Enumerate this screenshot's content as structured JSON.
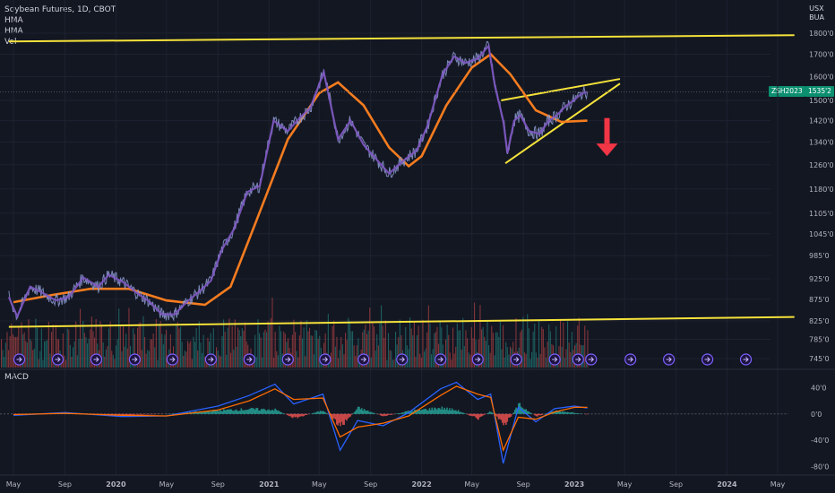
{
  "legend": {
    "title": "Soybean Futures, 1D, CBOT",
    "line2": "HMA",
    "line3": "HMA",
    "line4": "Vol"
  },
  "currency": {
    "top": "USX",
    "bottom": "BUA"
  },
  "badges": {
    "symbol": "ZSH2023",
    "price": "1535'2"
  },
  "macd_label": "MACD",
  "colors": {
    "background": "#131722",
    "price": "#8d9bd1",
    "hma_fast": "#7e57c2",
    "hma_slow": "#f57c1f",
    "trend_lines": "#f5e23a",
    "arrow": "#f23645",
    "vol_up": "#26a69a",
    "vol_down": "#ef5350",
    "macd": "#2962ff",
    "signal": "#ff6d00"
  },
  "chart_data": {
    "type": "line",
    "title": "Soybean Futures, 1D, CBOT",
    "y_tick_labels": [
      "1800'0",
      "1700'0",
      "1600'0",
      "1500'0",
      "1420'0",
      "1340'0",
      "1260'0",
      "1180'0",
      "1105'0",
      "1045'0",
      "985'0",
      "925'0",
      "875'0",
      "825'0",
      "785'0",
      "745'0"
    ],
    "y_tick_values": [
      1800,
      1700,
      1600,
      1500,
      1420,
      1340,
      1260,
      1180,
      1105,
      1045,
      985,
      925,
      875,
      825,
      785,
      745
    ],
    "x_tick_labels": [
      "May",
      "Sep",
      "2020",
      "May",
      "Sep",
      "2021",
      "May",
      "Sep",
      "2022",
      "May",
      "Sep",
      "2023",
      "May",
      "Sep",
      "2024",
      "May"
    ],
    "x_tick_dates": [
      "2019-05",
      "2019-09",
      "2020-01",
      "2020-05",
      "2020-09",
      "2021-01",
      "2021-05",
      "2021-09",
      "2022-01",
      "2022-05",
      "2022-09",
      "2023-01",
      "2023-05",
      "2023-09",
      "2024-01",
      "2024-05"
    ],
    "price_ylim": [
      745,
      1800
    ],
    "scale": "log",
    "last_price": "1535'2",
    "price_series": [
      {
        "date": "2019-04-20",
        "value": 880
      },
      {
        "date": "2019-05-10",
        "value": 835
      },
      {
        "date": "2019-06-10",
        "value": 905
      },
      {
        "date": "2019-07-10",
        "value": 890
      },
      {
        "date": "2019-08-10",
        "value": 872
      },
      {
        "date": "2019-09-10",
        "value": 880
      },
      {
        "date": "2019-10-15",
        "value": 928
      },
      {
        "date": "2019-11-20",
        "value": 905
      },
      {
        "date": "2019-12-15",
        "value": 935
      },
      {
        "date": "2020-01-20",
        "value": 915
      },
      {
        "date": "2020-02-20",
        "value": 890
      },
      {
        "date": "2020-03-20",
        "value": 870
      },
      {
        "date": "2020-04-20",
        "value": 840
      },
      {
        "date": "2020-05-20",
        "value": 840
      },
      {
        "date": "2020-06-20",
        "value": 870
      },
      {
        "date": "2020-07-20",
        "value": 895
      },
      {
        "date": "2020-08-15",
        "value": 920
      },
      {
        "date": "2020-09-10",
        "value": 1000
      },
      {
        "date": "2020-10-10",
        "value": 1060
      },
      {
        "date": "2020-11-10",
        "value": 1170
      },
      {
        "date": "2020-12-10",
        "value": 1190
      },
      {
        "date": "2021-01-12",
        "value": 1420
      },
      {
        "date": "2021-02-15",
        "value": 1380
      },
      {
        "date": "2021-03-15",
        "value": 1430
      },
      {
        "date": "2021-04-10",
        "value": 1470
      },
      {
        "date": "2021-05-12",
        "value": 1620
      },
      {
        "date": "2021-06-15",
        "value": 1350
      },
      {
        "date": "2021-07-15",
        "value": 1420
      },
      {
        "date": "2021-08-15",
        "value": 1330
      },
      {
        "date": "2021-09-20",
        "value": 1270
      },
      {
        "date": "2021-10-15",
        "value": 1230
      },
      {
        "date": "2021-11-15",
        "value": 1270
      },
      {
        "date": "2021-12-20",
        "value": 1310
      },
      {
        "date": "2022-01-15",
        "value": 1400
      },
      {
        "date": "2022-02-20",
        "value": 1610
      },
      {
        "date": "2022-03-20",
        "value": 1690
      },
      {
        "date": "2022-04-15",
        "value": 1660
      },
      {
        "date": "2022-05-15",
        "value": 1680
      },
      {
        "date": "2022-06-10",
        "value": 1740
      },
      {
        "date": "2022-06-25",
        "value": 1560
      },
      {
        "date": "2022-07-15",
        "value": 1420
      },
      {
        "date": "2022-07-25",
        "value": 1300
      },
      {
        "date": "2022-08-10",
        "value": 1420
      },
      {
        "date": "2022-08-25",
        "value": 1440
      },
      {
        "date": "2022-09-15",
        "value": 1380
      },
      {
        "date": "2022-10-10",
        "value": 1370
      },
      {
        "date": "2022-11-01",
        "value": 1420
      },
      {
        "date": "2022-11-20",
        "value": 1440
      },
      {
        "date": "2022-12-10",
        "value": 1475
      },
      {
        "date": "2022-12-30",
        "value": 1500
      },
      {
        "date": "2023-01-20",
        "value": 1530
      },
      {
        "date": "2023-02-01",
        "value": 1535.25
      }
    ],
    "hma_slow_series": [
      {
        "date": "2019-05-01",
        "value": 868
      },
      {
        "date": "2019-08-01",
        "value": 885
      },
      {
        "date": "2019-11-01",
        "value": 900
      },
      {
        "date": "2020-02-01",
        "value": 900
      },
      {
        "date": "2020-05-01",
        "value": 872
      },
      {
        "date": "2020-08-01",
        "value": 862
      },
      {
        "date": "2020-10-01",
        "value": 905
      },
      {
        "date": "2020-12-01",
        "value": 1080
      },
      {
        "date": "2021-02-15",
        "value": 1350
      },
      {
        "date": "2021-05-01",
        "value": 1530
      },
      {
        "date": "2021-06-15",
        "value": 1575
      },
      {
        "date": "2021-08-15",
        "value": 1480
      },
      {
        "date": "2021-10-15",
        "value": 1320
      },
      {
        "date": "2021-12-01",
        "value": 1255
      },
      {
        "date": "2022-01-01",
        "value": 1290
      },
      {
        "date": "2022-03-01",
        "value": 1480
      },
      {
        "date": "2022-05-01",
        "value": 1640
      },
      {
        "date": "2022-06-15",
        "value": 1700
      },
      {
        "date": "2022-08-01",
        "value": 1610
      },
      {
        "date": "2022-10-01",
        "value": 1460
      },
      {
        "date": "2022-12-01",
        "value": 1415
      },
      {
        "date": "2023-02-01",
        "value": 1420
      }
    ],
    "trend_lines": [
      {
        "name": "resistance-top",
        "from": {
          "date": "2019-04-20",
          "value": 1760
        },
        "to": {
          "date": "2024-06-10",
          "value": 1790
        }
      },
      {
        "name": "support-bottom",
        "from": {
          "date": "2019-04-20",
          "value": 812
        },
        "to": {
          "date": "2024-06-10",
          "value": 834
        }
      },
      {
        "name": "wedge-upper",
        "from": {
          "date": "2022-07-10",
          "value": 1500
        },
        "to": {
          "date": "2023-04-20",
          "value": 1590
        }
      },
      {
        "name": "wedge-lower",
        "from": {
          "date": "2022-07-20",
          "value": 1265
        },
        "to": {
          "date": "2023-04-20",
          "value": 1570
        }
      }
    ],
    "arrow": {
      "direction": "down",
      "date": "2023-03-20",
      "from": 1430,
      "to": 1290
    },
    "volume": {
      "ylim": [
        0,
        1
      ],
      "description": "daily volume bars in lower band"
    },
    "macd": {
      "tick_labels": [
        "40'0",
        "0'0",
        "-40'0",
        "-80'0"
      ],
      "tick_values": [
        40,
        0,
        -40,
        -80
      ],
      "ylim": [
        -90,
        50
      ],
      "macd_series": [
        {
          "date": "2019-05-01",
          "value": -2
        },
        {
          "date": "2019-09-01",
          "value": 2
        },
        {
          "date": "2020-01-15",
          "value": -4
        },
        {
          "date": "2020-05-01",
          "value": -3
        },
        {
          "date": "2020-09-01",
          "value": 12
        },
        {
          "date": "2020-11-15",
          "value": 28
        },
        {
          "date": "2021-01-15",
          "value": 45
        },
        {
          "date": "2021-03-01",
          "value": 15
        },
        {
          "date": "2021-05-10",
          "value": 30
        },
        {
          "date": "2021-06-20",
          "value": -55
        },
        {
          "date": "2021-08-01",
          "value": -10
        },
        {
          "date": "2021-10-01",
          "value": -18
        },
        {
          "date": "2021-12-01",
          "value": 2
        },
        {
          "date": "2022-02-15",
          "value": 38
        },
        {
          "date": "2022-03-25",
          "value": 48
        },
        {
          "date": "2022-05-15",
          "value": 22
        },
        {
          "date": "2022-06-15",
          "value": 30
        },
        {
          "date": "2022-07-15",
          "value": -75
        },
        {
          "date": "2022-08-20",
          "value": 10
        },
        {
          "date": "2022-10-01",
          "value": -12
        },
        {
          "date": "2022-11-15",
          "value": 8
        },
        {
          "date": "2023-01-01",
          "value": 12
        },
        {
          "date": "2023-02-01",
          "value": 9
        }
      ],
      "signal_series": [
        {
          "date": "2019-05-01",
          "value": -1
        },
        {
          "date": "2019-09-01",
          "value": 1
        },
        {
          "date": "2020-01-15",
          "value": -2
        },
        {
          "date": "2020-05-01",
          "value": -3
        },
        {
          "date": "2020-09-01",
          "value": 6
        },
        {
          "date": "2020-11-15",
          "value": 20
        },
        {
          "date": "2021-01-15",
          "value": 38
        },
        {
          "date": "2021-03-01",
          "value": 22
        },
        {
          "date": "2021-05-10",
          "value": 24
        },
        {
          "date": "2021-06-20",
          "value": -35
        },
        {
          "date": "2021-08-01",
          "value": -20
        },
        {
          "date": "2021-10-01",
          "value": -14
        },
        {
          "date": "2021-12-01",
          "value": -3
        },
        {
          "date": "2022-02-15",
          "value": 28
        },
        {
          "date": "2022-03-25",
          "value": 42
        },
        {
          "date": "2022-05-15",
          "value": 30
        },
        {
          "date": "2022-06-15",
          "value": 25
        },
        {
          "date": "2022-07-15",
          "value": -55
        },
        {
          "date": "2022-08-20",
          "value": -5
        },
        {
          "date": "2022-10-01",
          "value": -8
        },
        {
          "date": "2022-11-15",
          "value": 3
        },
        {
          "date": "2023-01-01",
          "value": 10
        },
        {
          "date": "2023-02-01",
          "value": 10
        }
      ]
    }
  }
}
